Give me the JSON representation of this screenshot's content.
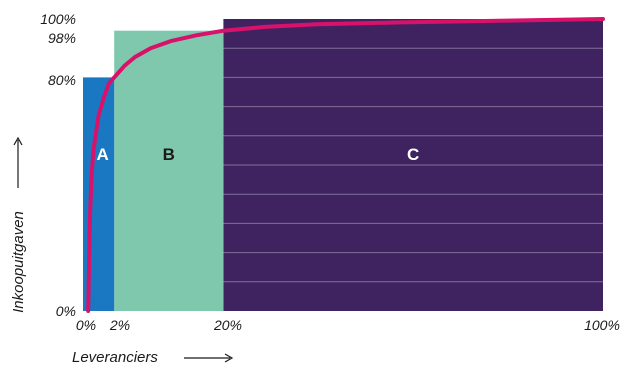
{
  "chart_data": {
    "type": "area",
    "title": "",
    "xlabel": "Leveranciers",
    "ylabel": "Inkoopuitgaven",
    "x_ticks": [
      "0%",
      "2%",
      "20%",
      "100%"
    ],
    "y_ticks": [
      "0%",
      "80%",
      "98%",
      "100%"
    ],
    "xlim": [
      0,
      100
    ],
    "ylim": [
      0,
      100
    ],
    "grid": true,
    "zones": [
      {
        "label": "A",
        "x_from": 0,
        "x_to": 6,
        "y_top": 80,
        "color": "#1a78c2",
        "label_color": "#ffffff"
      },
      {
        "label": "B",
        "x_from": 6,
        "x_to": 27,
        "y_top": 96,
        "color": "#7fc8ae",
        "label_color": "#1b1b1b"
      },
      {
        "label": "C",
        "x_from": 27,
        "x_to": 100,
        "y_top": 100,
        "color": "#3e2360",
        "label_color": "#ffffff"
      }
    ],
    "curve": {
      "color": "#d8116b",
      "points": [
        [
          1,
          0
        ],
        [
          1.3,
          30
        ],
        [
          1.6,
          45
        ],
        [
          2,
          55
        ],
        [
          3,
          67
        ],
        [
          4,
          73
        ],
        [
          5,
          78
        ],
        [
          6,
          80
        ],
        [
          8,
          84
        ],
        [
          10,
          87
        ],
        [
          13,
          90
        ],
        [
          17,
          92.5
        ],
        [
          22,
          94.5
        ],
        [
          27,
          96
        ],
        [
          35,
          97.3
        ],
        [
          45,
          98.2
        ],
        [
          60,
          98.8
        ],
        [
          80,
          99.4
        ],
        [
          100,
          100
        ]
      ]
    }
  }
}
